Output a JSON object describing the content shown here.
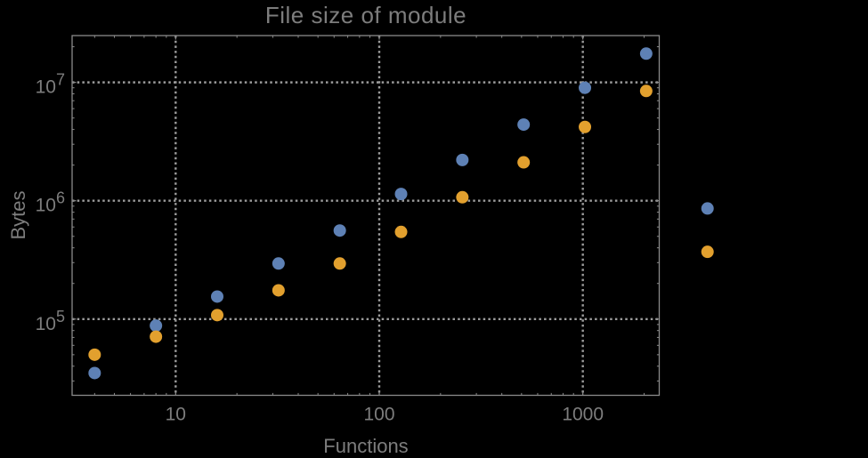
{
  "chart_data": {
    "type": "scatter",
    "title": "File size of module",
    "xlabel": "Functions",
    "ylabel": "Bytes",
    "xscale": "log",
    "yscale": "log",
    "xlim": [
      3.1,
      2373
    ],
    "ylim": [
      22700,
      24850000
    ],
    "grid": "dotted at major ticks",
    "legend": "none",
    "colors": {
      "background": "#000000",
      "frame": "#8a8a8a",
      "gridline": "#9c9c9c",
      "text": "#7d7d7d",
      "series_blue": "#5e81b5",
      "series_orange": "#e2a02e"
    },
    "x_ticks": [
      {
        "value": 10,
        "label": "10"
      },
      {
        "value": 100,
        "label": "100"
      },
      {
        "value": 1000,
        "label": "1000"
      }
    ],
    "y_ticks": [
      {
        "value": 100000,
        "base": "10",
        "exp": "5"
      },
      {
        "value": 1000000,
        "base": "10",
        "exp": "6"
      },
      {
        "value": 10000000,
        "base": "10",
        "exp": "7"
      }
    ],
    "series": [
      {
        "name": "blue-series",
        "color": "#5e81b5",
        "points": [
          [
            4,
            35000
          ],
          [
            8,
            88000
          ],
          [
            16,
            155000
          ],
          [
            32,
            295000
          ],
          [
            64,
            560000
          ],
          [
            128,
            1140000
          ],
          [
            256,
            2210000
          ],
          [
            512,
            4400000
          ],
          [
            1024,
            9000000
          ],
          [
            2048,
            17500000
          ],
          [
            4096,
            860000
          ]
        ]
      },
      {
        "name": "orange-series",
        "color": "#e2a02e",
        "points": [
          [
            4,
            50000
          ],
          [
            8,
            71000
          ],
          [
            16,
            108000
          ],
          [
            32,
            175000
          ],
          [
            64,
            295000
          ],
          [
            128,
            545000
          ],
          [
            256,
            1070000
          ],
          [
            512,
            2110000
          ],
          [
            1024,
            4200000
          ],
          [
            2048,
            8460000
          ],
          [
            4096,
            370000
          ]
        ]
      }
    ]
  }
}
